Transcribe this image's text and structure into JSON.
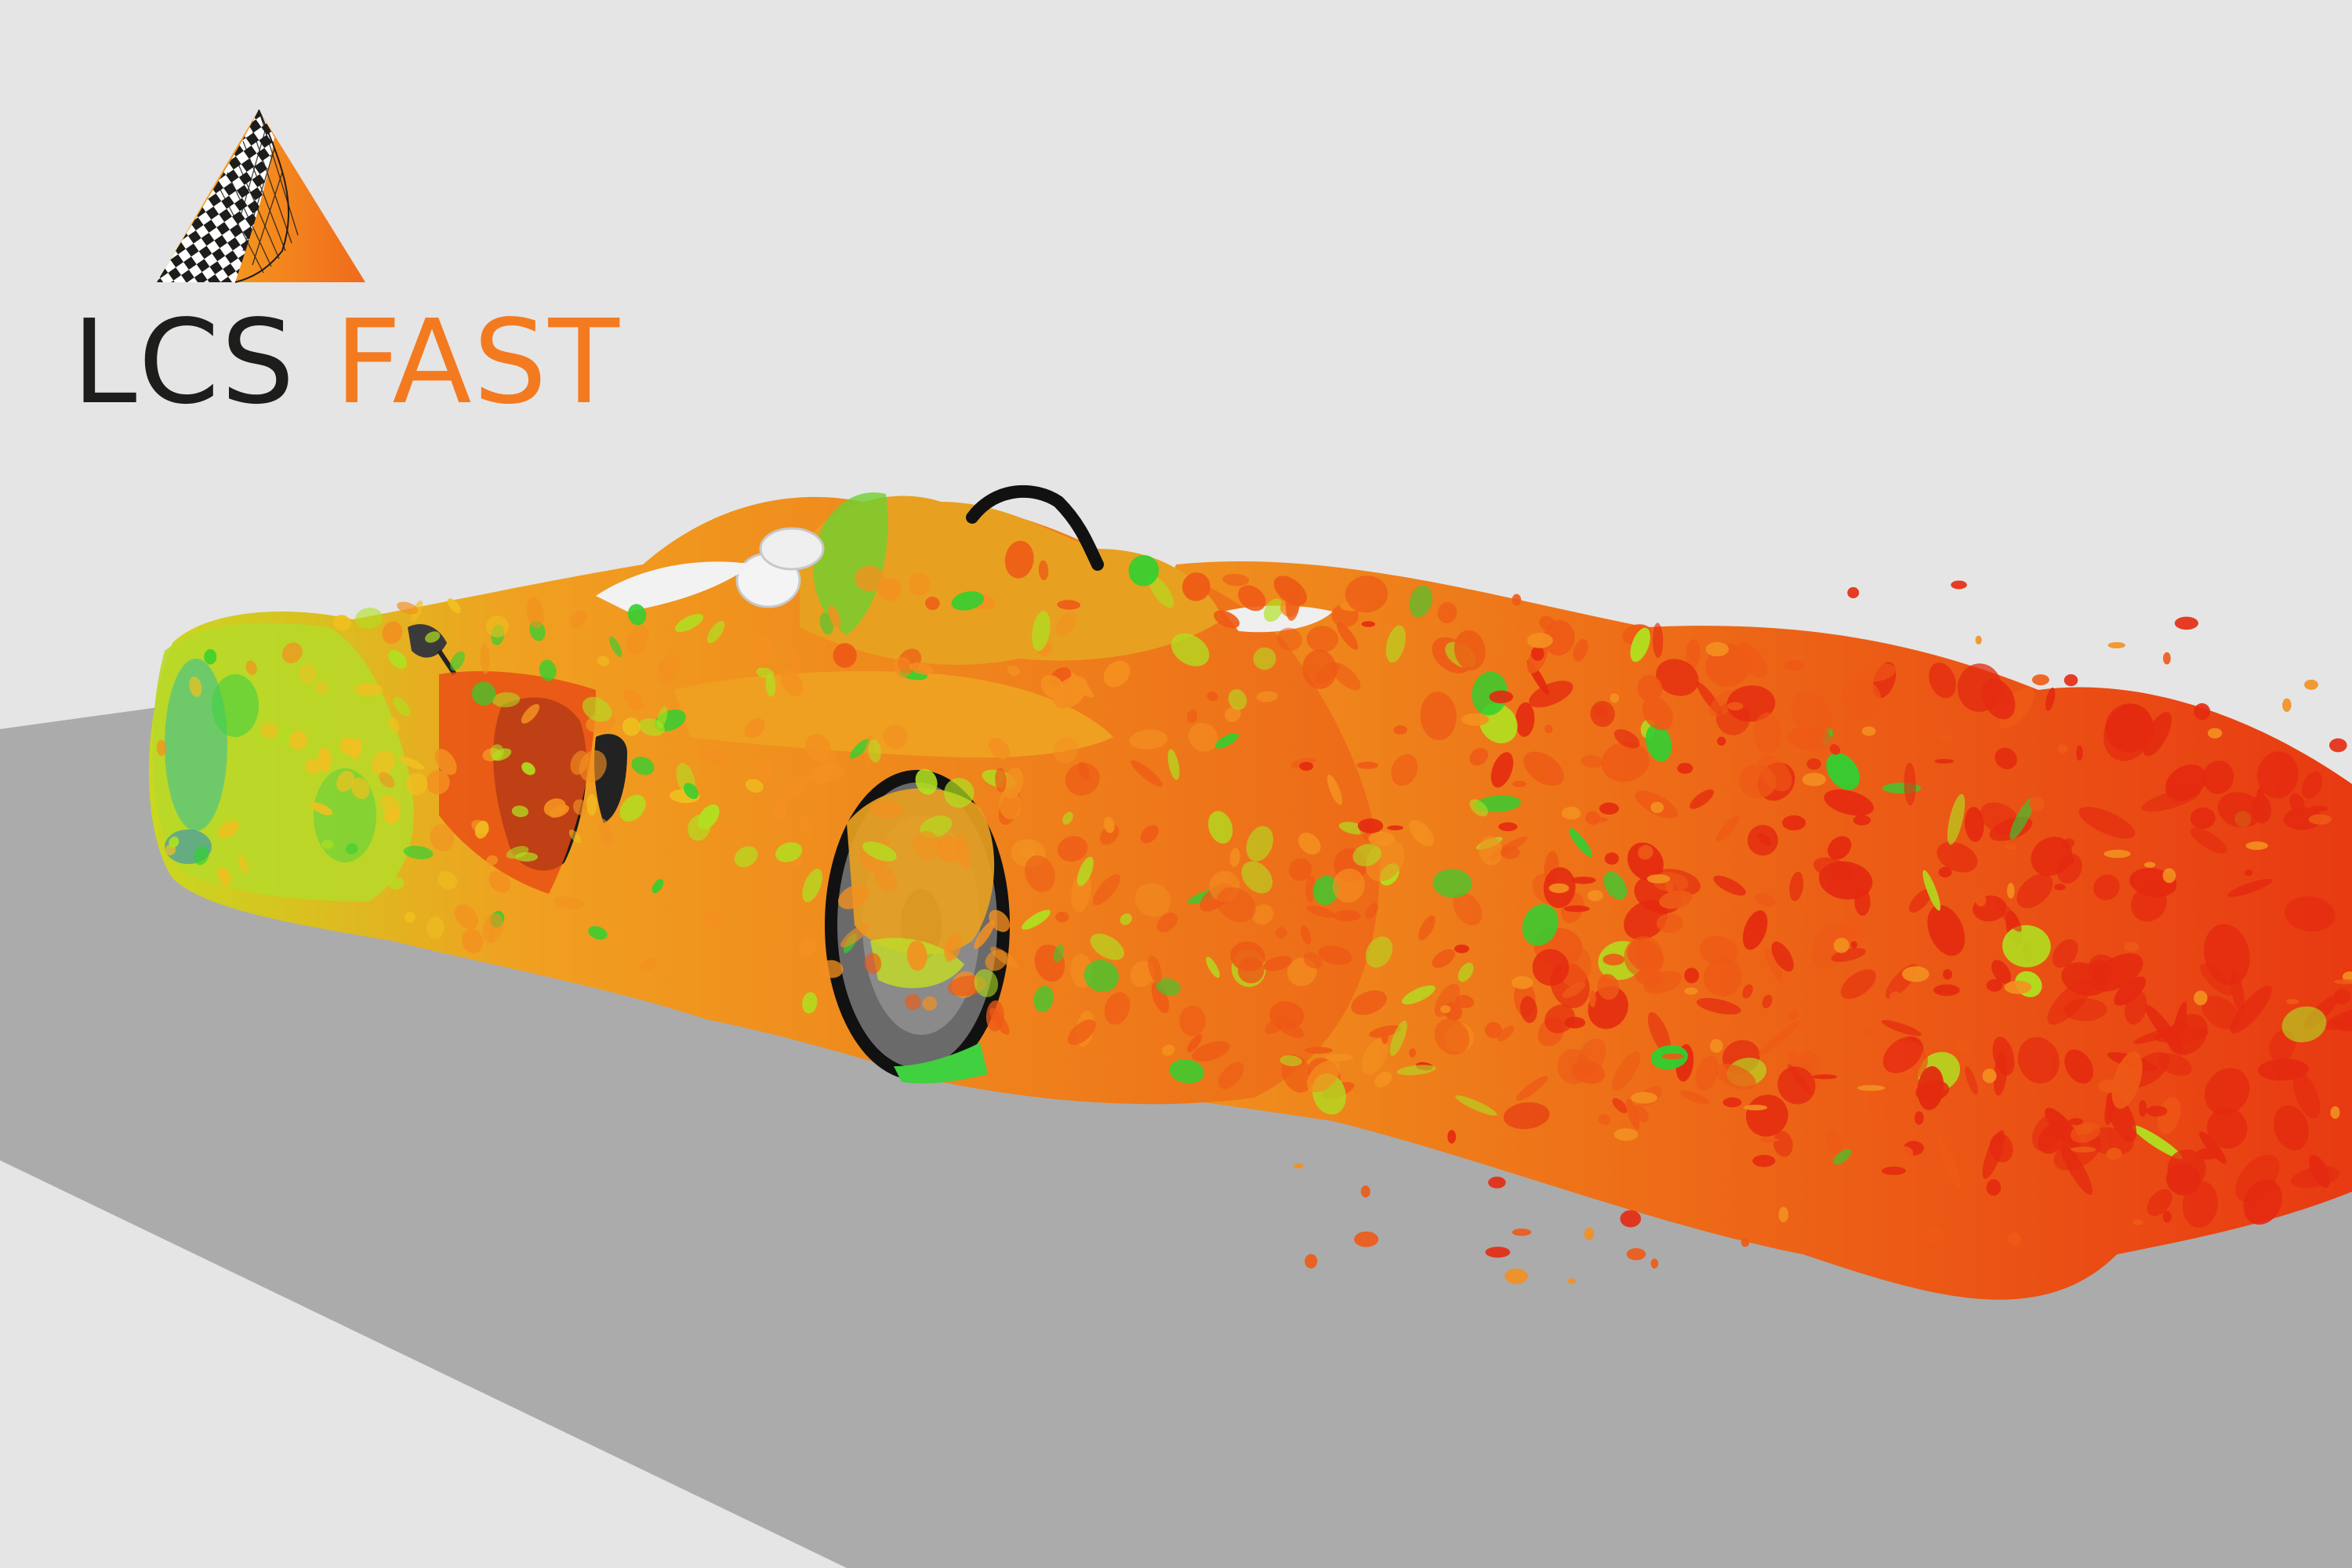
{
  "logo": {
    "brand_part_1": "LCS",
    "brand_part_2": "FAST",
    "mark_icon": "triangle-checkered-flag-logo",
    "colors": {
      "dark": "#1d1d1b",
      "accent": "#f47a20"
    }
  },
  "scene": {
    "background_color": "#e5e5e5",
    "ground_color": "#ababab",
    "subject": "race-car-turbulent-wake-isosurface",
    "palette": [
      "#1060e0",
      "#10c0c0",
      "#30d030",
      "#b0e020",
      "#f0c020",
      "#f39020",
      "#ee5a16",
      "#e42a10"
    ]
  }
}
